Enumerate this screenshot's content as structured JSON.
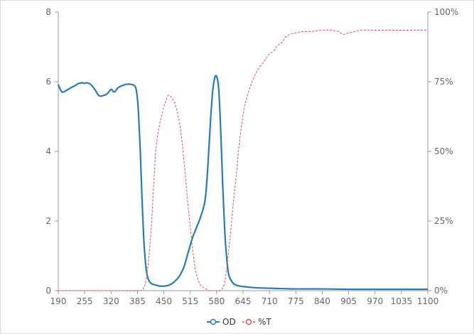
{
  "chart_data": {
    "type": "line",
    "x_ticks": [
      "190",
      "255",
      "320",
      "385",
      "450",
      "515",
      "580",
      "645",
      "710",
      "775",
      "840",
      "905",
      "970",
      "1035",
      "1100"
    ],
    "y_left_ticks": [
      "0",
      "2",
      "4",
      "6",
      "8"
    ],
    "y_right_ticks": [
      "0%",
      "25%",
      "50%",
      "75%",
      "100%"
    ],
    "xlim": [
      190,
      1100
    ],
    "ylim_left": [
      0,
      8
    ],
    "ylim_right": [
      0,
      100
    ],
    "grid": false,
    "legend_position": "bottom-center",
    "series": [
      {
        "name": "OD",
        "axis": "left",
        "color": "#2a7bb0",
        "style": "solid",
        "x": [
          190,
          195,
          200,
          210,
          220,
          230,
          240,
          250,
          255,
          260,
          270,
          280,
          290,
          300,
          310,
          320,
          325,
          330,
          335,
          340,
          350,
          360,
          370,
          380,
          385,
          388,
          392,
          396,
          400,
          404,
          408,
          412,
          416,
          420,
          430,
          440,
          450,
          460,
          470,
          480,
          490,
          500,
          510,
          520,
          530,
          540,
          550,
          555,
          560,
          565,
          570,
          575,
          580,
          585,
          590,
          595,
          600,
          605,
          610,
          620,
          630,
          645,
          660,
          680,
          710,
          740,
          775,
          840,
          905,
          970,
          1035,
          1100
        ],
        "values": [
          5.92,
          5.78,
          5.7,
          5.75,
          5.82,
          5.88,
          5.95,
          5.97,
          5.95,
          5.97,
          5.92,
          5.78,
          5.6,
          5.6,
          5.65,
          5.78,
          5.72,
          5.72,
          5.8,
          5.85,
          5.9,
          5.93,
          5.92,
          5.85,
          5.5,
          5.0,
          4.0,
          2.7,
          1.6,
          0.9,
          0.5,
          0.32,
          0.24,
          0.2,
          0.16,
          0.13,
          0.13,
          0.15,
          0.2,
          0.3,
          0.45,
          0.7,
          1.1,
          1.5,
          1.8,
          2.1,
          2.5,
          3.0,
          3.9,
          4.9,
          5.7,
          6.1,
          6.15,
          5.8,
          4.6,
          3.0,
          1.7,
          0.9,
          0.45,
          0.22,
          0.15,
          0.12,
          0.1,
          0.08,
          0.07,
          0.06,
          0.05,
          0.05,
          0.04,
          0.04,
          0.04,
          0.04
        ]
      },
      {
        "name": "%T",
        "axis": "right",
        "color": "#d9534f",
        "style": "dashed",
        "x": [
          190,
          250,
          320,
          390,
          400,
          405,
          410,
          415,
          420,
          425,
          430,
          435,
          440,
          445,
          450,
          455,
          460,
          465,
          470,
          475,
          480,
          485,
          490,
          495,
          500,
          505,
          510,
          515,
          520,
          525,
          530,
          540,
          550,
          560,
          570,
          580,
          590,
          595,
          600,
          605,
          610,
          615,
          620,
          625,
          630,
          635,
          640,
          645,
          650,
          660,
          670,
          680,
          690,
          700,
          710,
          720,
          730,
          740,
          750,
          760,
          775,
          790,
          810,
          840,
          860,
          880,
          890,
          905,
          940,
          970,
          1000,
          1035,
          1070,
          1100
        ],
        "values": [
          0,
          0,
          0,
          0,
          1,
          3,
          8,
          15,
          25,
          38,
          50,
          56,
          60,
          63,
          66,
          68,
          70,
          70,
          69,
          68,
          66,
          63,
          59,
          53,
          46,
          38,
          30,
          23,
          16,
          10,
          6,
          2,
          1,
          0,
          0,
          0,
          0,
          1,
          3,
          8,
          15,
          22,
          30,
          37,
          44,
          52,
          58,
          63,
          67,
          72,
          76,
          79,
          81,
          83,
          85,
          86,
          88,
          89,
          91,
          92,
          92.5,
          93,
          93,
          93.5,
          93.5,
          93,
          92,
          92.5,
          93.5,
          93.5,
          93.5,
          93.5,
          93.5,
          93.5
        ]
      }
    ]
  }
}
